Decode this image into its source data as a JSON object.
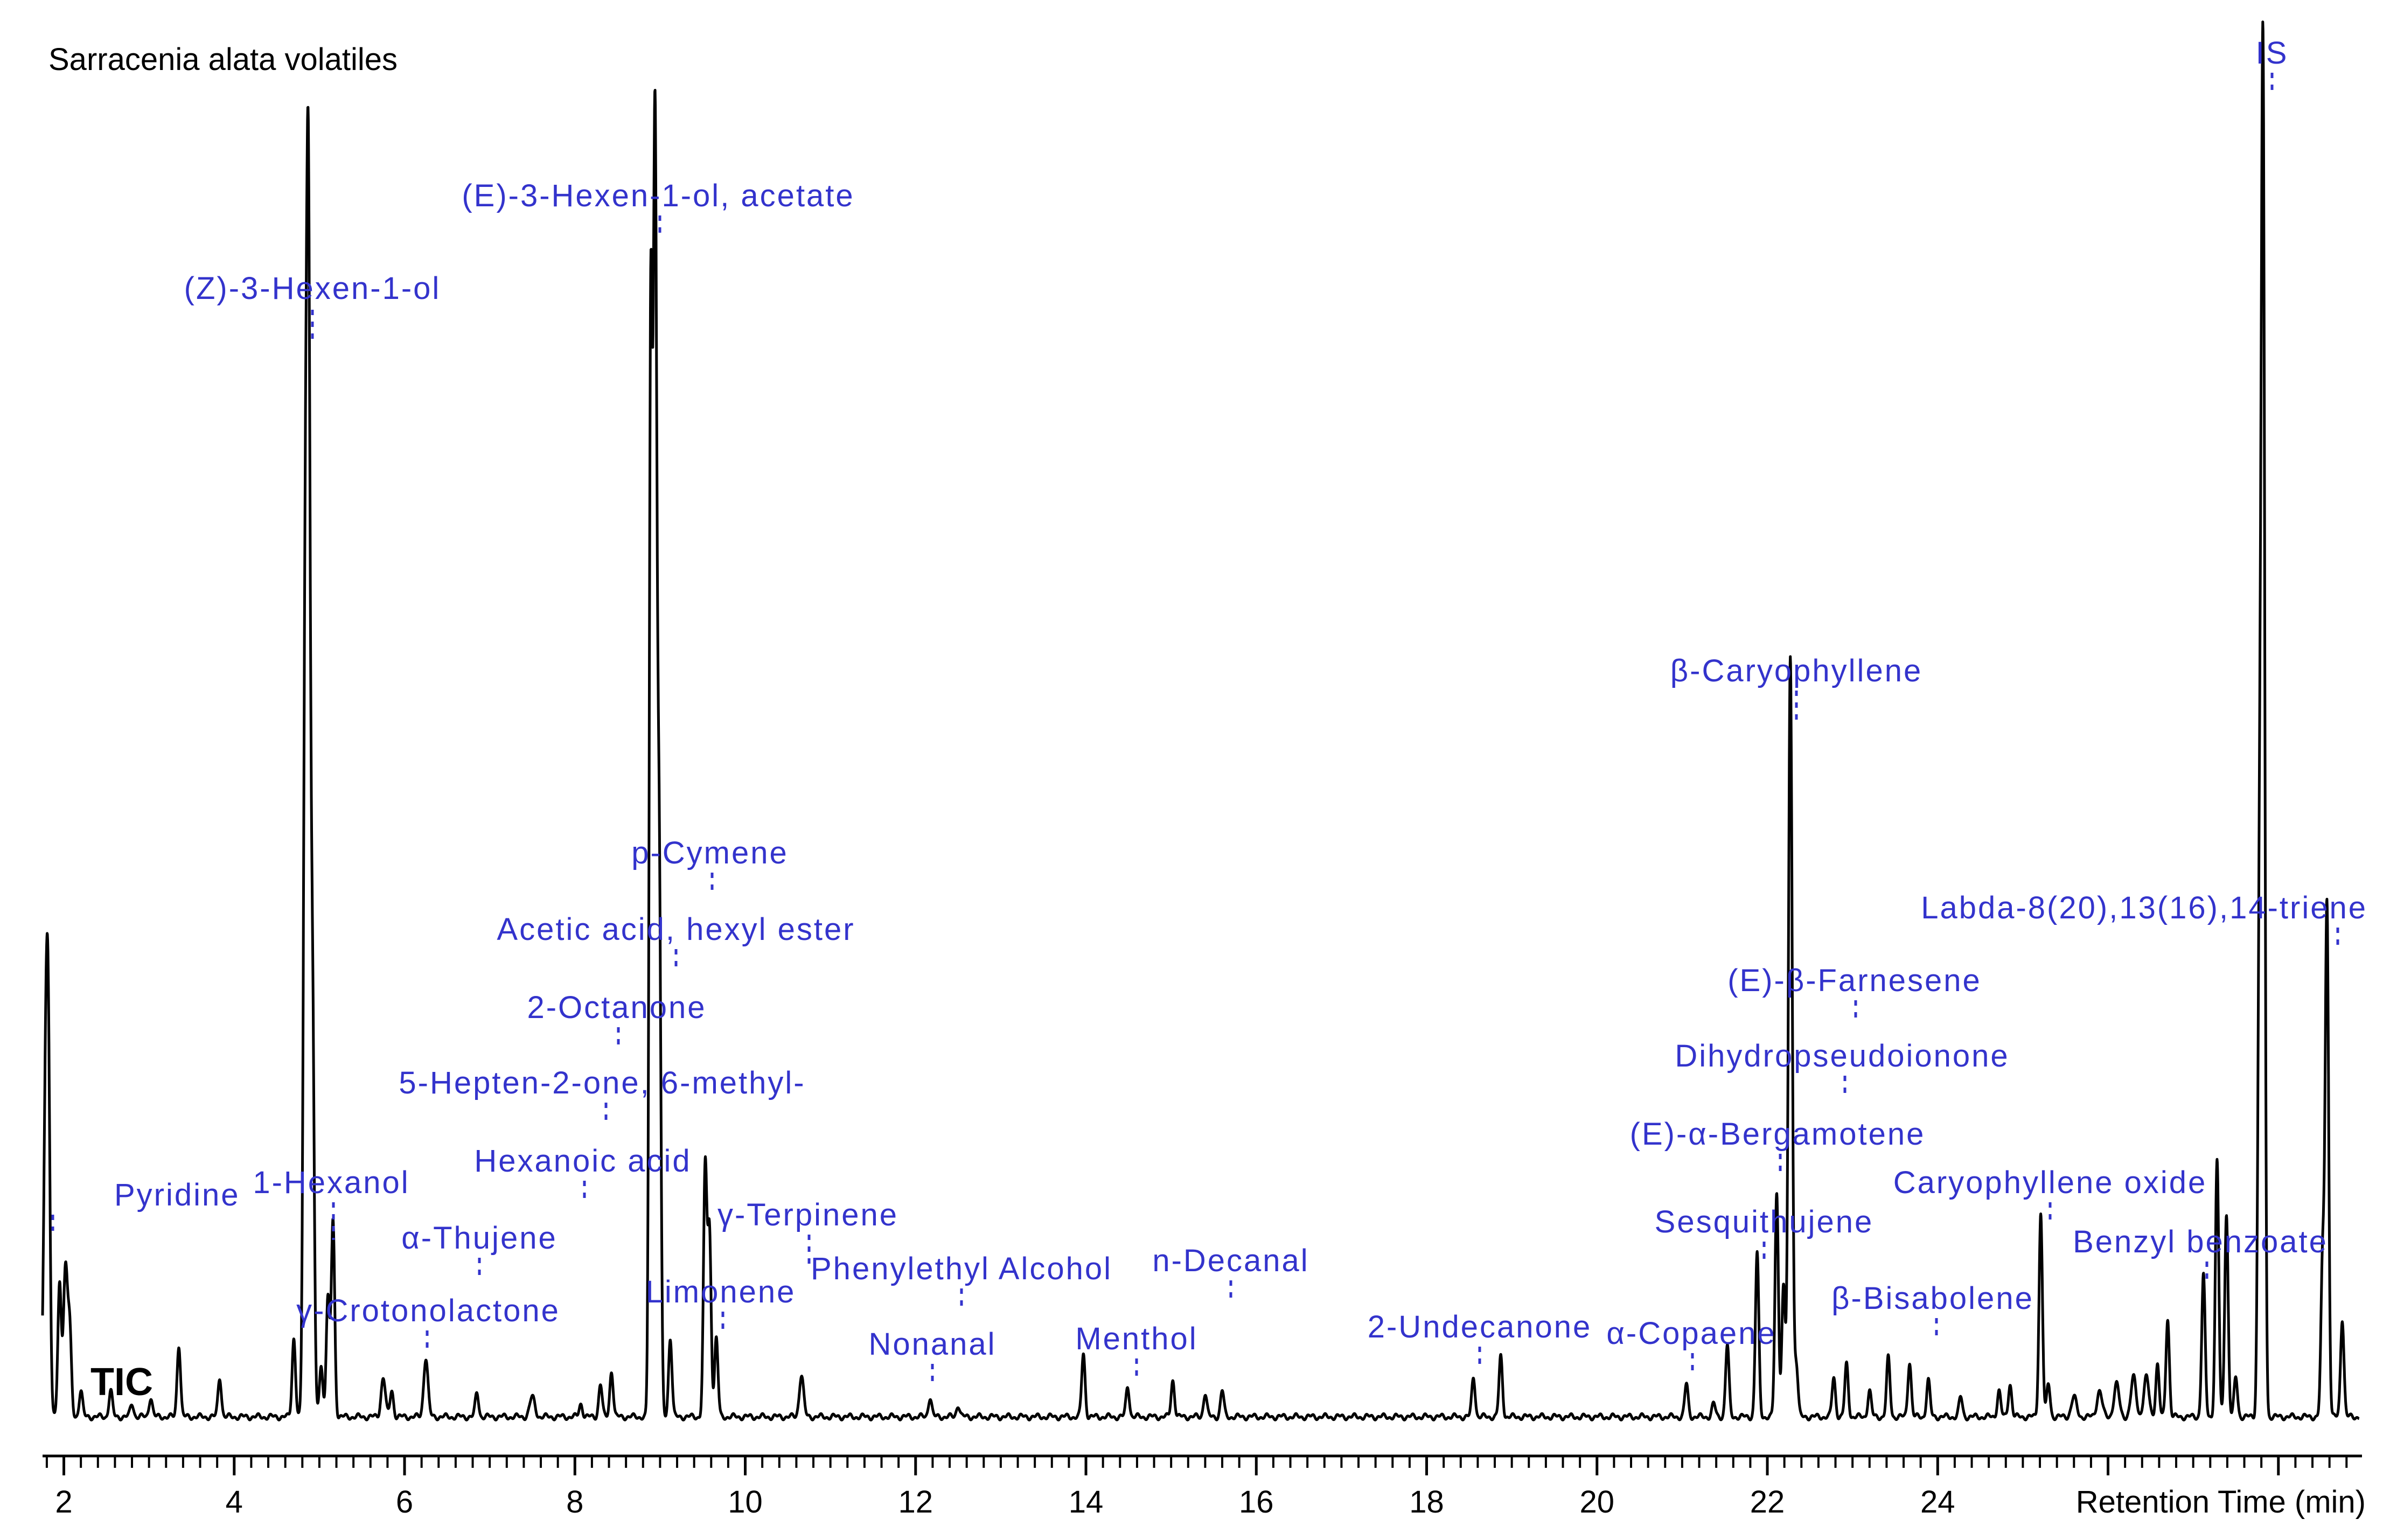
{
  "chart_data": {
    "type": "line",
    "title": "Sarracenia alata volatiles",
    "trace_label": "TIC",
    "xlabel": "Retention Time (min)",
    "xlim": [
      1.75,
      28.95
    ],
    "ylim": [
      0,
      100
    ],
    "grid": false,
    "colors": {
      "trace": "#000000",
      "label": "#3333cc",
      "axis": "#000000"
    },
    "x_ticks": [
      2,
      4,
      6,
      8,
      10,
      12,
      14,
      16,
      18,
      20,
      22,
      24
    ],
    "baseline": 0.4,
    "peaks": [
      {
        "rt": 1.79,
        "h": 27.0,
        "w": 0.025
      },
      {
        "rt": 1.82,
        "h": 19.0,
        "w": 0.02
      },
      {
        "rt": 1.95,
        "h": 10.0,
        "w": 0.02
      },
      {
        "rt": 2.02,
        "h": 11.5,
        "w": 0.025
      },
      {
        "rt": 2.07,
        "h": 6.0,
        "w": 0.02
      },
      {
        "rt": 2.2,
        "h": 2.0,
        "w": 0.02
      },
      {
        "rt": 2.55,
        "h": 2.0,
        "w": 0.02
      },
      {
        "rt": 2.8,
        "h": 1.0,
        "w": 0.02
      },
      {
        "rt": 3.02,
        "h": 1.5,
        "w": 0.02
      },
      {
        "rt": 3.35,
        "h": 5.5,
        "w": 0.02
      },
      {
        "rt": 3.83,
        "h": 3.0,
        "w": 0.02
      },
      {
        "rt": 4.7,
        "h": 6.0,
        "w": 0.02
      },
      {
        "rt": 4.83,
        "h": 50.0,
        "w": 0.02
      },
      {
        "rt": 4.87,
        "h": 91.0,
        "w": 0.022
      },
      {
        "rt": 4.92,
        "h": 30.0,
        "w": 0.02
      },
      {
        "rt": 5.02,
        "h": 4.0,
        "w": 0.02
      },
      {
        "rt": 5.1,
        "h": 9.0,
        "w": 0.02
      },
      {
        "rt": 5.16,
        "h": 15.0,
        "w": 0.02
      },
      {
        "rt": 5.75,
        "h": 3.0,
        "w": 0.025
      },
      {
        "rt": 5.85,
        "h": 2.0,
        "w": 0.02
      },
      {
        "rt": 6.25,
        "h": 4.5,
        "w": 0.025
      },
      {
        "rt": 6.85,
        "h": 1.8,
        "w": 0.02
      },
      {
        "rt": 7.5,
        "h": 1.5,
        "w": 0.03
      },
      {
        "rt": 8.07,
        "h": 1.0,
        "w": 0.02
      },
      {
        "rt": 8.3,
        "h": 2.5,
        "w": 0.02
      },
      {
        "rt": 8.43,
        "h": 3.5,
        "w": 0.02
      },
      {
        "rt": 8.89,
        "h": 80.0,
        "w": 0.018
      },
      {
        "rt": 8.94,
        "h": 98.0,
        "w": 0.022
      },
      {
        "rt": 8.99,
        "h": 40.0,
        "w": 0.02
      },
      {
        "rt": 9.12,
        "h": 6.0,
        "w": 0.02
      },
      {
        "rt": 9.53,
        "h": 19.0,
        "w": 0.02
      },
      {
        "rt": 9.58,
        "h": 14.0,
        "w": 0.02
      },
      {
        "rt": 9.66,
        "h": 6.0,
        "w": 0.02
      },
      {
        "rt": 10.66,
        "h": 3.2,
        "w": 0.025
      },
      {
        "rt": 12.17,
        "h": 1.5,
        "w": 0.02
      },
      {
        "rt": 12.5,
        "h": 0.9,
        "w": 0.02
      },
      {
        "rt": 13.97,
        "h": 4.8,
        "w": 0.02
      },
      {
        "rt": 14.49,
        "h": 2.3,
        "w": 0.02
      },
      {
        "rt": 15.02,
        "h": 2.8,
        "w": 0.02
      },
      {
        "rt": 15.4,
        "h": 1.8,
        "w": 0.02
      },
      {
        "rt": 15.6,
        "h": 2.0,
        "w": 0.02
      },
      {
        "rt": 18.55,
        "h": 3.0,
        "w": 0.02
      },
      {
        "rt": 18.87,
        "h": 4.6,
        "w": 0.02
      },
      {
        "rt": 21.05,
        "h": 2.5,
        "w": 0.02
      },
      {
        "rt": 21.37,
        "h": 1.0,
        "w": 0.02
      },
      {
        "rt": 21.53,
        "h": 5.5,
        "w": 0.02
      },
      {
        "rt": 21.88,
        "h": 12.5,
        "w": 0.02
      },
      {
        "rt": 22.11,
        "h": 17.0,
        "w": 0.02
      },
      {
        "rt": 22.19,
        "h": 10.0,
        "w": 0.02
      },
      {
        "rt": 22.27,
        "h": 58.0,
        "w": 0.022
      },
      {
        "rt": 22.34,
        "h": 4.0,
        "w": 0.02
      },
      {
        "rt": 22.78,
        "h": 3.0,
        "w": 0.02
      },
      {
        "rt": 22.93,
        "h": 4.0,
        "w": 0.02
      },
      {
        "rt": 23.2,
        "h": 2.0,
        "w": 0.02
      },
      {
        "rt": 23.42,
        "h": 4.5,
        "w": 0.02
      },
      {
        "rt": 23.67,
        "h": 4.2,
        "w": 0.02
      },
      {
        "rt": 23.89,
        "h": 2.8,
        "w": 0.02
      },
      {
        "rt": 24.27,
        "h": 1.5,
        "w": 0.02
      },
      {
        "rt": 24.72,
        "h": 2.0,
        "w": 0.02
      },
      {
        "rt": 24.85,
        "h": 2.5,
        "w": 0.02
      },
      {
        "rt": 25.21,
        "h": 15.5,
        "w": 0.02
      },
      {
        "rt": 25.3,
        "h": 2.5,
        "w": 0.02
      },
      {
        "rt": 25.6,
        "h": 1.5,
        "w": 0.03
      },
      {
        "rt": 25.9,
        "h": 2.0,
        "w": 0.03
      },
      {
        "rt": 26.1,
        "h": 2.5,
        "w": 0.03
      },
      {
        "rt": 26.3,
        "h": 3.0,
        "w": 0.03
      },
      {
        "rt": 26.45,
        "h": 3.0,
        "w": 0.03
      },
      {
        "rt": 26.58,
        "h": 4.0,
        "w": 0.02
      },
      {
        "rt": 26.7,
        "h": 7.5,
        "w": 0.02
      },
      {
        "rt": 27.12,
        "h": 10.8,
        "w": 0.02
      },
      {
        "rt": 27.28,
        "h": 19.5,
        "w": 0.02
      },
      {
        "rt": 27.39,
        "h": 15.5,
        "w": 0.02
      },
      {
        "rt": 27.5,
        "h": 3.0,
        "w": 0.02
      },
      {
        "rt": 27.82,
        "h": 100.0,
        "w": 0.02
      },
      {
        "rt": 27.78,
        "h": 40.0,
        "w": 0.02
      },
      {
        "rt": 28.52,
        "h": 12.0,
        "w": 0.02
      },
      {
        "rt": 28.57,
        "h": 39.0,
        "w": 0.02
      },
      {
        "rt": 28.75,
        "h": 7.5,
        "w": 0.02
      }
    ],
    "annotations": [
      {
        "label": "Pyridine",
        "rt": 2.02
      },
      {
        "label": "1-Hexanol",
        "rt": 5.16
      },
      {
        "label": "(Z)-3-Hexen-1-ol",
        "rt": 4.87
      },
      {
        "label": "γ-Crotonolactone",
        "rt": 6.25
      },
      {
        "label": "α-Thujene",
        "rt": 6.85
      },
      {
        "label": "Hexanoic acid",
        "rt": 8.07
      },
      {
        "label": "5-Hepten-2-one, 6-methyl-",
        "rt": 8.3
      },
      {
        "label": "2-Octanone",
        "rt": 8.43
      },
      {
        "label": "(E)-3-Hexen-1-ol, acetate",
        "rt": 8.94
      },
      {
        "label": "Acetic acid, hexyl ester",
        "rt": 9.12
      },
      {
        "label": "p-Cymene",
        "rt": 9.53
      },
      {
        "label": "Limonene",
        "rt": 9.66
      },
      {
        "label": "γ-Terpinene",
        "rt": 10.66
      },
      {
        "label": "Nonanal",
        "rt": 12.17
      },
      {
        "label": "Phenylethyl Alcohol",
        "rt": 12.5
      },
      {
        "label": "Menthol",
        "rt": 14.49
      },
      {
        "label": "n-Decanal",
        "rt": 15.6
      },
      {
        "label": "2-Undecanone",
        "rt": 18.55
      },
      {
        "label": "α-Copaene",
        "rt": 21.05
      },
      {
        "label": "Sesquithujene",
        "rt": 21.88
      },
      {
        "label": "(E)-α-Bergamotene",
        "rt": 22.11
      },
      {
        "label": "β-Caryophyllene",
        "rt": 22.27
      },
      {
        "label": "Dihydropseudoionone",
        "rt": 22.78
      },
      {
        "label": "(E)-β-Farnesene",
        "rt": 22.93
      },
      {
        "label": "β-Bisabolene",
        "rt": 23.89
      },
      {
        "label": "Caryophyllene oxide",
        "rt": 25.21
      },
      {
        "label": "Benzyl benzoate",
        "rt": 27.12
      },
      {
        "label": "IS",
        "rt": 27.82
      },
      {
        "label": "Labda-8(20),13(16),14-triene",
        "rt": 28.57
      }
    ]
  }
}
